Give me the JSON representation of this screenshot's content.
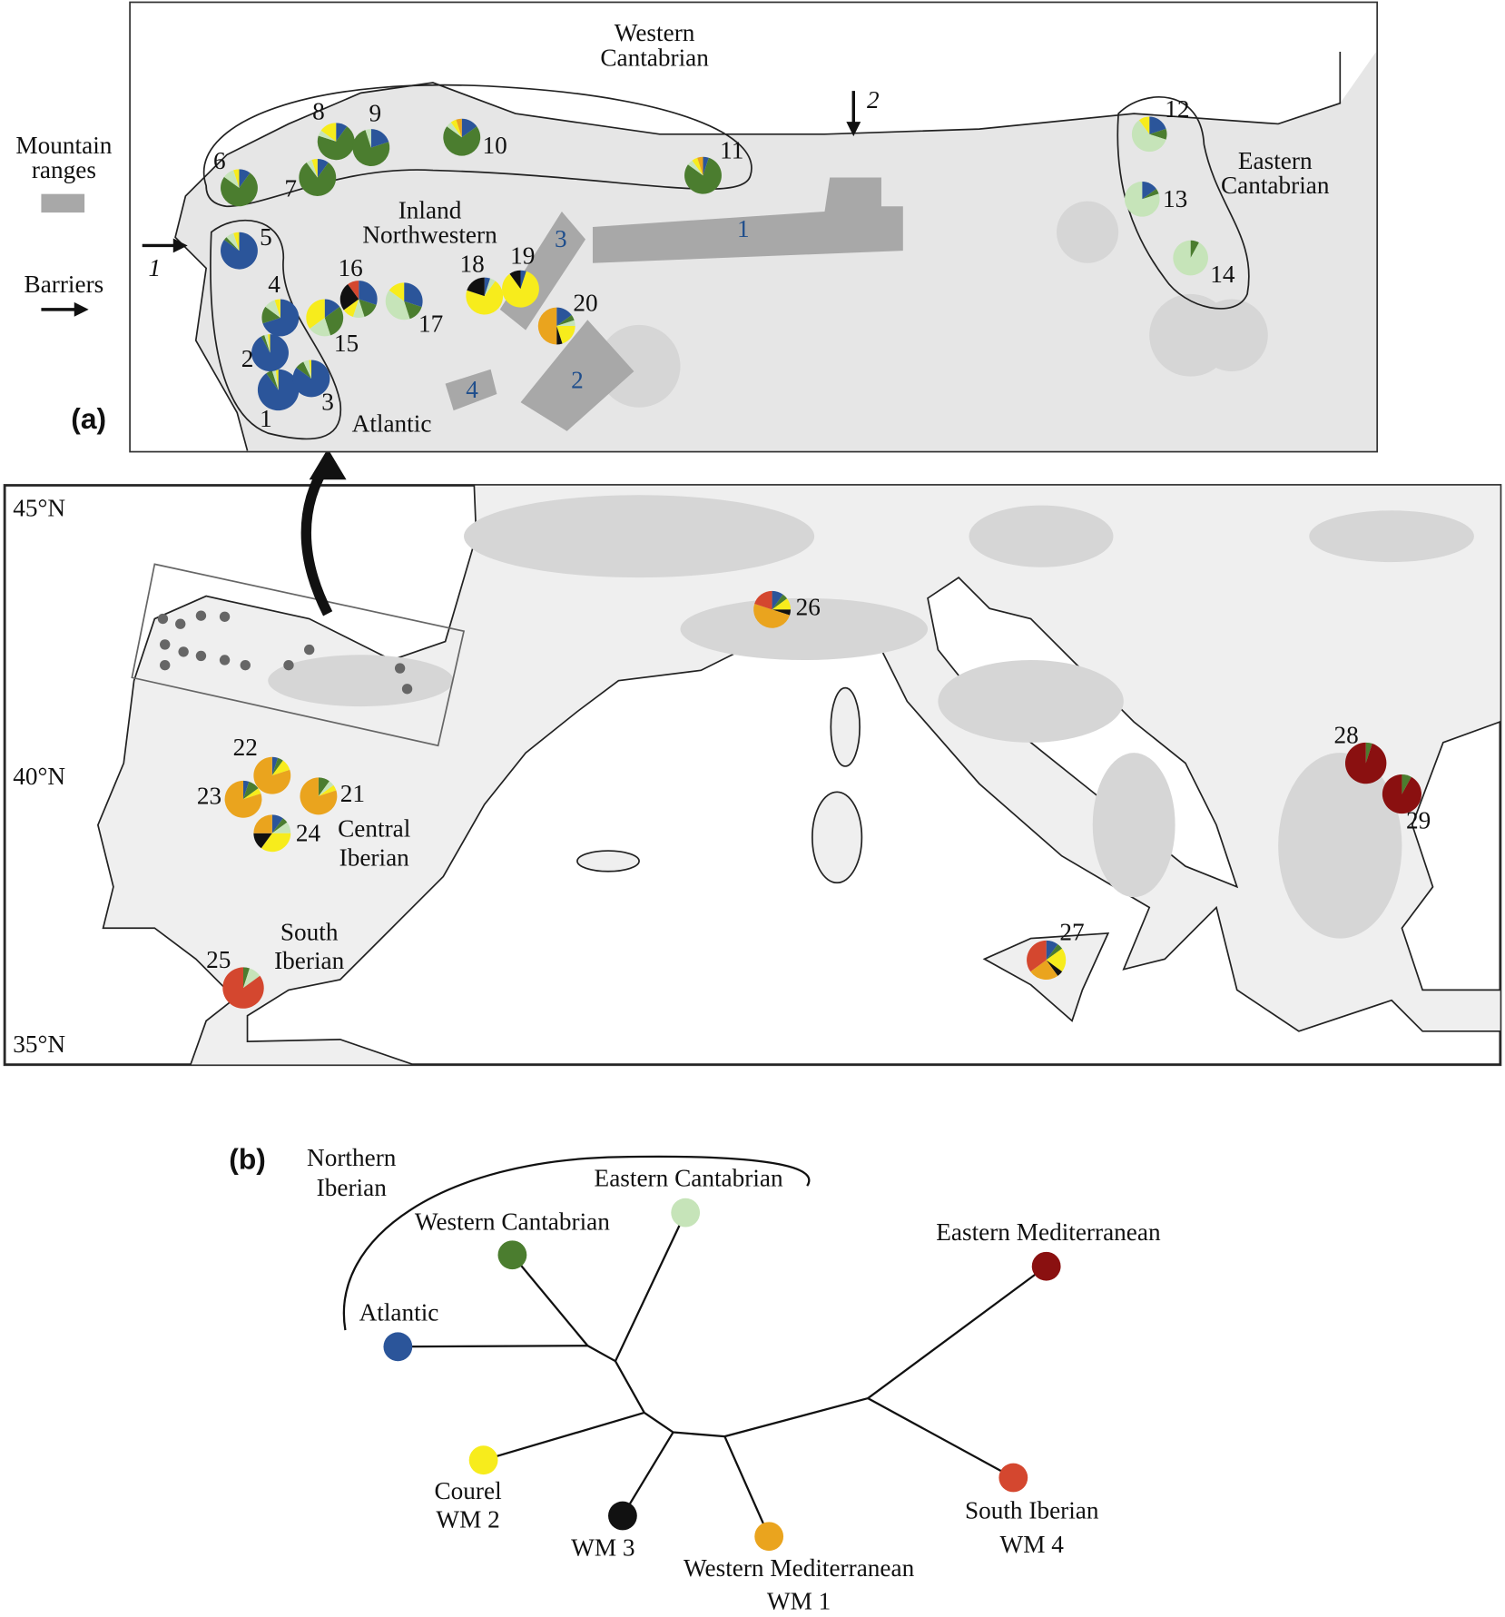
{
  "panel_a": {
    "label": "(a)",
    "legend": {
      "mountain_ranges": [
        "Mountain",
        "ranges"
      ],
      "barriers": "Barriers"
    },
    "regions": [
      {
        "lines": [
          "Western",
          "Cantabrian"
        ]
      },
      {
        "lines": [
          "Eastern",
          "Cantabrian"
        ]
      },
      {
        "lines": [
          "Inland",
          "Northwestern"
        ]
      },
      {
        "lines": [
          "Atlantic"
        ]
      },
      {
        "lines": [
          "Central",
          "Iberian"
        ]
      },
      {
        "lines": [
          "South",
          "Iberian"
        ]
      }
    ],
    "barriers": [
      "1",
      "2"
    ],
    "mountain_ranges": [
      "1",
      "2",
      "3",
      "4"
    ],
    "latitudes": [
      "45°N",
      "40°N",
      "35°N"
    ]
  },
  "populations": [
    {
      "label": "1",
      "values": [
        90,
        5,
        3,
        2,
        0,
        0,
        0,
        0
      ]
    },
    {
      "label": "2",
      "values": [
        92,
        3,
        3,
        2,
        0,
        0,
        0,
        0
      ]
    },
    {
      "label": "3",
      "values": [
        85,
        8,
        5,
        2,
        0,
        0,
        0,
        0
      ]
    },
    {
      "label": "4",
      "values": [
        70,
        15,
        10,
        5,
        0,
        0,
        0,
        0
      ]
    },
    {
      "label": "5",
      "values": [
        85,
        3,
        7,
        5,
        0,
        0,
        0,
        0
      ]
    },
    {
      "label": "6",
      "values": [
        10,
        75,
        10,
        5,
        0,
        0,
        0,
        0
      ]
    },
    {
      "label": "7",
      "values": [
        10,
        80,
        5,
        5,
        0,
        0,
        0,
        0
      ]
    },
    {
      "label": "8",
      "values": [
        10,
        70,
        5,
        15,
        0,
        0,
        0,
        0
      ]
    },
    {
      "label": "9",
      "values": [
        20,
        75,
        5,
        0,
        0,
        0,
        0,
        0
      ]
    },
    {
      "label": "10",
      "values": [
        15,
        70,
        5,
        5,
        0,
        5,
        0,
        0
      ]
    },
    {
      "label": "11",
      "values": [
        5,
        80,
        5,
        5,
        0,
        5,
        0,
        0
      ]
    },
    {
      "label": "12",
      "values": [
        20,
        10,
        60,
        10,
        0,
        0,
        0,
        0
      ]
    },
    {
      "label": "13",
      "values": [
        15,
        5,
        80,
        0,
        0,
        0,
        0,
        0
      ]
    },
    {
      "label": "14",
      "values": [
        0,
        8,
        92,
        0,
        0,
        0,
        0,
        0
      ]
    },
    {
      "label": "15",
      "values": [
        15,
        30,
        20,
        35,
        0,
        0,
        0,
        0
      ]
    },
    {
      "label": "16",
      "values": [
        30,
        15,
        10,
        10,
        25,
        0,
        10,
        0
      ]
    },
    {
      "label": "17",
      "values": [
        30,
        15,
        40,
        15,
        0,
        0,
        0,
        0
      ]
    },
    {
      "label": "18",
      "values": [
        5,
        0,
        5,
        70,
        20,
        0,
        0,
        0
      ]
    },
    {
      "label": "19",
      "values": [
        5,
        0,
        0,
        85,
        10,
        0,
        0,
        0
      ]
    },
    {
      "label": "20",
      "values": [
        15,
        5,
        5,
        20,
        5,
        50,
        0,
        0
      ]
    },
    {
      "label": "21",
      "values": [
        0,
        10,
        5,
        5,
        0,
        80,
        0,
        0
      ]
    },
    {
      "label": "22",
      "values": [
        5,
        5,
        0,
        10,
        0,
        80,
        0,
        0
      ]
    },
    {
      "label": "23",
      "values": [
        5,
        10,
        0,
        5,
        0,
        80,
        0,
        0
      ]
    },
    {
      "label": "24",
      "values": [
        10,
        5,
        10,
        35,
        15,
        25,
        0,
        0
      ]
    },
    {
      "label": "25",
      "values": [
        0,
        5,
        10,
        0,
        0,
        0,
        85,
        0
      ]
    },
    {
      "label": "26",
      "values": [
        10,
        5,
        0,
        10,
        5,
        50,
        20,
        0
      ]
    },
    {
      "label": "27",
      "values": [
        10,
        5,
        0,
        20,
        5,
        25,
        35,
        0
      ]
    },
    {
      "label": "28",
      "values": [
        0,
        5,
        0,
        0,
        0,
        0,
        0,
        95
      ]
    },
    {
      "label": "29",
      "values": [
        0,
        8,
        0,
        0,
        0,
        0,
        0,
        92
      ]
    }
  ],
  "panel_b": {
    "label": "(b)",
    "group": [
      "Northern",
      "Iberian"
    ],
    "clusters": [
      {
        "lines": [
          "Atlantic"
        ],
        "color": "#2b559a"
      },
      {
        "lines": [
          "Western Cantabrian"
        ],
        "color": "#4b7d2f"
      },
      {
        "lines": [
          "Eastern Cantabrian"
        ],
        "color": "#c6e4b9"
      },
      {
        "lines": [
          "Courel",
          "WM 2"
        ],
        "color": "#f7ec1c"
      },
      {
        "lines": [
          "WM 3"
        ],
        "color": "#111111"
      },
      {
        "lines": [
          "Western Mediterranean",
          "WM 1"
        ],
        "color": "#eaa41e"
      },
      {
        "lines": [
          "South Iberian",
          "WM 4"
        ],
        "color": "#d4472f"
      },
      {
        "lines": [
          "Eastern Mediterranean"
        ],
        "color": "#8a1010"
      }
    ]
  }
}
